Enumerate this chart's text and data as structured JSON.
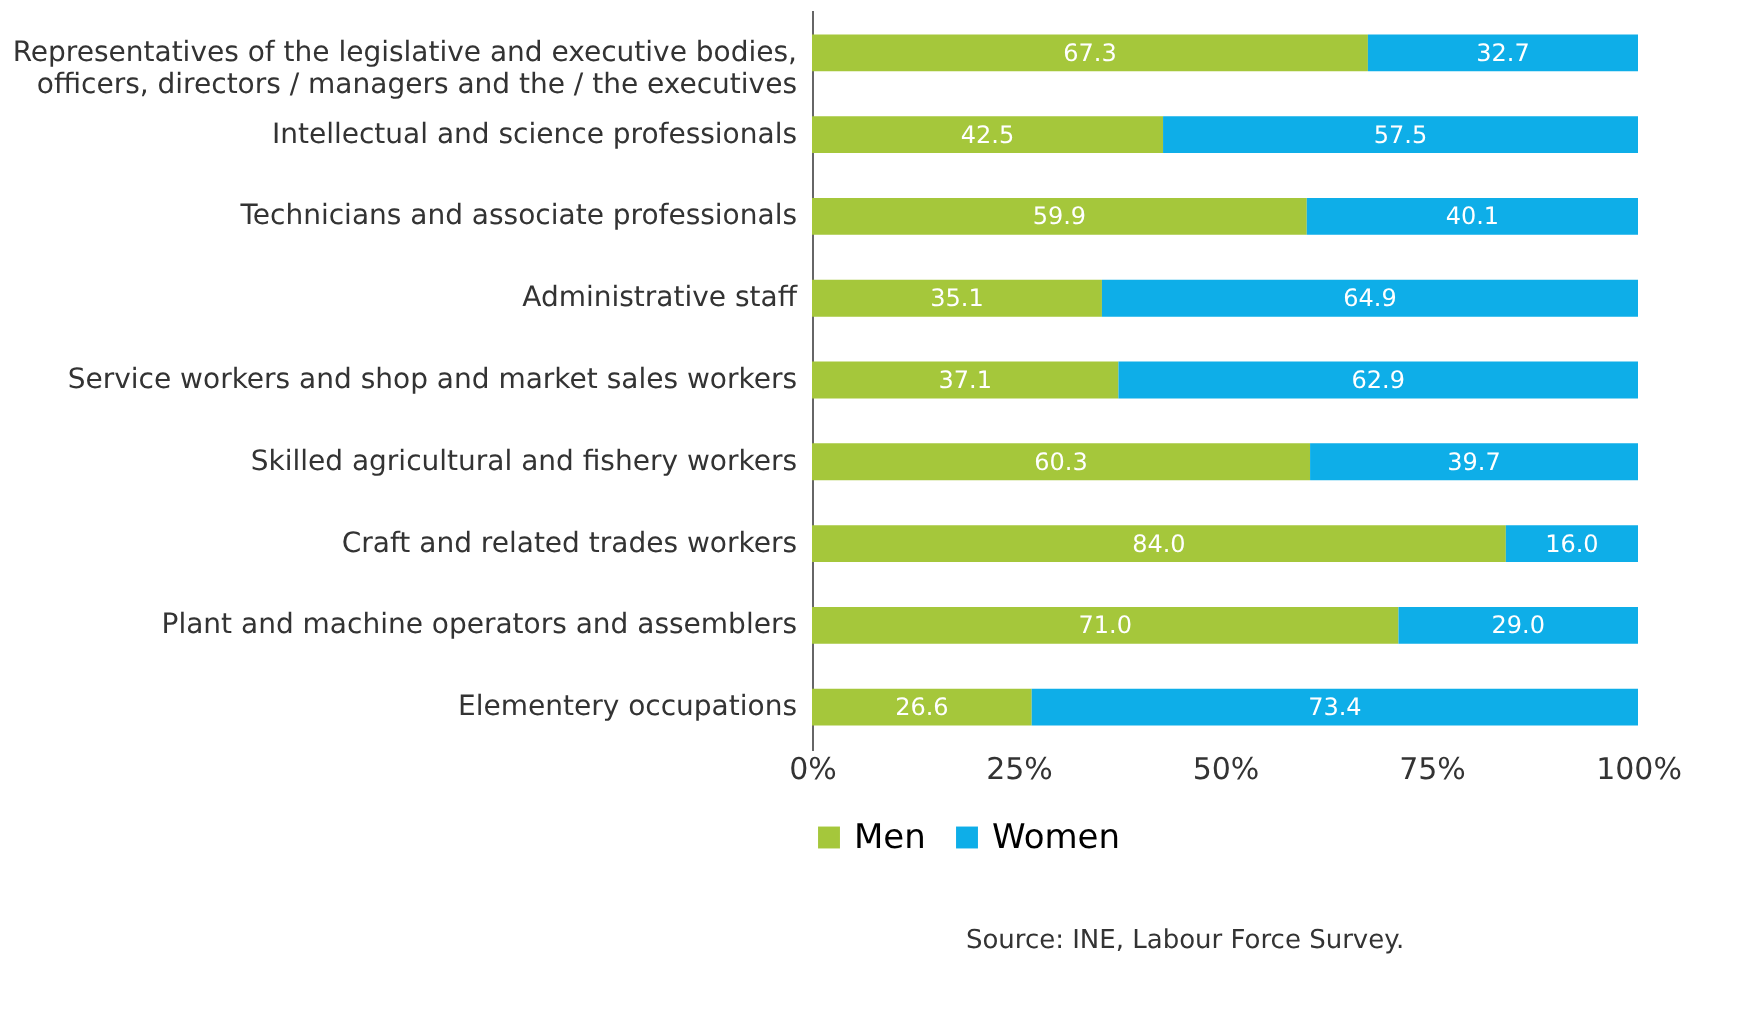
{
  "chart_data": {
    "type": "bar",
    "orientation": "horizontal",
    "stacked": true,
    "legend": "bottom",
    "grid": false,
    "categories": [
      "Representatives of the legislative and executive bodies,\nofficers, directors / managers and the / the executives",
      "Intellectual and science professionals",
      "Technicians and associate professionals",
      "Administrative staff",
      "Service workers and shop and market sales workers",
      "Skilled agricultural and fishery workers",
      "Craft and related trades workers",
      "Plant and machine operators and assemblers",
      "Elementery occupations"
    ],
    "series": [
      {
        "name": "Men",
        "color": "#a5c73b",
        "values": [
          67.3,
          42.5,
          59.9,
          35.1,
          37.1,
          60.3,
          84.0,
          71.0,
          26.6
        ],
        "value_labels": [
          "67.3",
          "42.5",
          "59.9",
          "35.1",
          "37.1",
          "60.3",
          "84.0",
          "71.0",
          "26.6"
        ]
      },
      {
        "name": "Women",
        "color": "#0eaee8",
        "values": [
          32.7,
          57.5,
          40.1,
          64.9,
          62.9,
          39.7,
          16.0,
          29.0,
          73.4
        ],
        "value_labels": [
          "32.7",
          "57.5",
          "40.1",
          "64.9",
          "62.9",
          "39.7",
          "16.0",
          "29.0",
          "73.4"
        ]
      }
    ],
    "xlim": [
      0,
      100
    ],
    "xticks": [
      {
        "value": 0,
        "label": "0%"
      },
      {
        "value": 25,
        "label": "25%"
      },
      {
        "value": 50,
        "label": "50%"
      },
      {
        "value": 75,
        "label": "75%"
      },
      {
        "value": 100,
        "label": "100%"
      }
    ],
    "annotations": [
      "Source: INE, Labour Force Survey."
    ]
  }
}
